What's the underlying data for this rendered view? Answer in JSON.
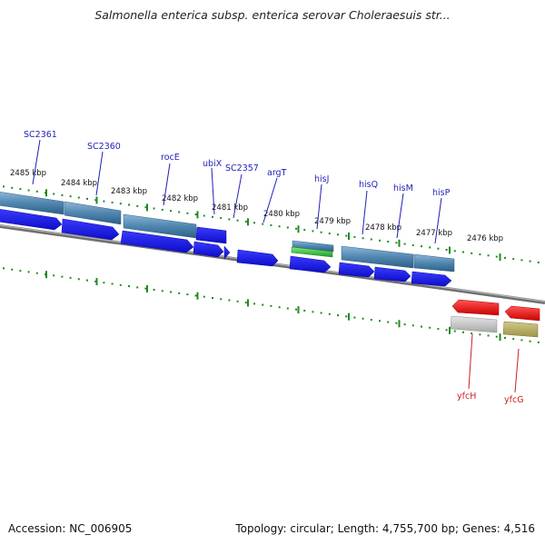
{
  "title": "Salmonella enterica subsp. enterica serovar Choleraesuis str...",
  "footer": {
    "accession": "Accession: NC_006905",
    "summary": "Topology: circular; Length: 4,755,700 bp; Genes: 4,516"
  },
  "colors": {
    "gene_blue": "#1a1aee",
    "gene_label_blue": "#1f1fb8",
    "gene_label_red": "#cc1f1f",
    "gene_red": "#ee1111",
    "steel": "#4f86b0",
    "rna_green": "#35c93a",
    "tick_green": "#1f8a1f",
    "backbone": "#7a7a7a"
  },
  "scale_labels": [
    {
      "text": "2485 kbp",
      "kbp": 2485
    },
    {
      "text": "2484 kbp",
      "kbp": 2484
    },
    {
      "text": "2483 kbp",
      "kbp": 2483
    },
    {
      "text": "2482 kbp",
      "kbp": 2482
    },
    {
      "text": "2481 kbp",
      "kbp": 2481
    },
    {
      "text": "2480 kbp",
      "kbp": 2480
    },
    {
      "text": "2479 kbp",
      "kbp": 2479
    },
    {
      "text": "2478 kbp",
      "kbp": 2478
    },
    {
      "text": "2477 kbp",
      "kbp": 2477
    },
    {
      "text": "2476 kbp",
      "kbp": 2476
    }
  ],
  "gene_labels": [
    {
      "name": "SC2361",
      "strand": "top"
    },
    {
      "name": "SC2360",
      "strand": "top"
    },
    {
      "name": "rocE",
      "strand": "top"
    },
    {
      "name": "ubiX",
      "strand": "top"
    },
    {
      "name": "SC2357",
      "strand": "top"
    },
    {
      "name": "argT",
      "strand": "top"
    },
    {
      "name": "hisJ",
      "strand": "top"
    },
    {
      "name": "hisQ",
      "strand": "top"
    },
    {
      "name": "hisM",
      "strand": "top"
    },
    {
      "name": "hisP",
      "strand": "top"
    },
    {
      "name": "yfcH",
      "strand": "bottom"
    },
    {
      "name": "yfcG",
      "strand": "bottom"
    }
  ]
}
